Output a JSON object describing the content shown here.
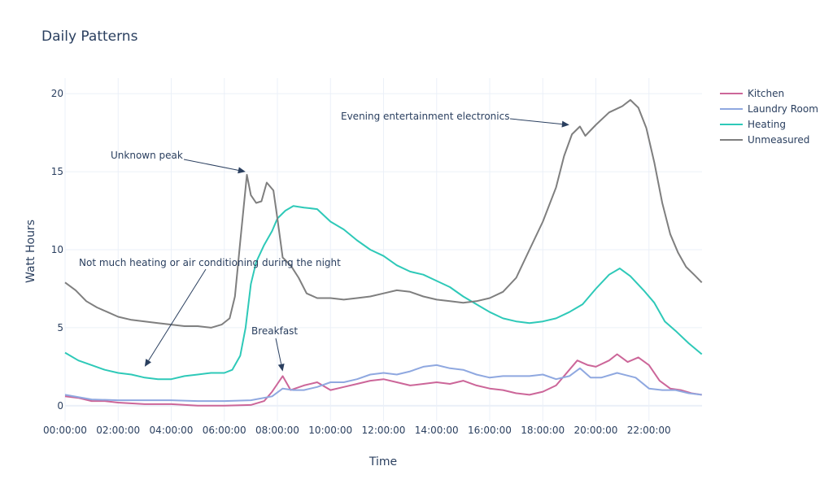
{
  "chart_data": {
    "type": "line",
    "title": "Daily Patterns",
    "xlabel": "Time",
    "ylabel": "Watt Hours",
    "xlim": [
      0,
      24
    ],
    "ylim": [
      -1,
      21
    ],
    "x_ticks": [
      "00:00:00",
      "02:00:00",
      "04:00:00",
      "06:00:00",
      "08:00:00",
      "10:00:00",
      "12:00:00",
      "14:00:00",
      "16:00:00",
      "18:00:00",
      "20:00:00",
      "22:00:00"
    ],
    "y_ticks": [
      0,
      5,
      10,
      15,
      20
    ],
    "grid": true,
    "legend_position": "top-right",
    "series": [
      {
        "name": "Kitchen",
        "color": "#cc6699",
        "points": [
          [
            0,
            0.6
          ],
          [
            0.5,
            0.5
          ],
          [
            1,
            0.3
          ],
          [
            1.5,
            0.3
          ],
          [
            2,
            0.2
          ],
          [
            3,
            0.1
          ],
          [
            4,
            0.1
          ],
          [
            5,
            0.0
          ],
          [
            6,
            0.0
          ],
          [
            7,
            0.05
          ],
          [
            7.5,
            0.3
          ],
          [
            7.8,
            0.9
          ],
          [
            8.0,
            1.4
          ],
          [
            8.2,
            1.9
          ],
          [
            8.5,
            1.0
          ],
          [
            9.0,
            1.3
          ],
          [
            9.5,
            1.5
          ],
          [
            10.0,
            1.0
          ],
          [
            10.5,
            1.2
          ],
          [
            11.0,
            1.4
          ],
          [
            11.5,
            1.6
          ],
          [
            12.0,
            1.7
          ],
          [
            12.5,
            1.5
          ],
          [
            13.0,
            1.3
          ],
          [
            13.5,
            1.4
          ],
          [
            14.0,
            1.5
          ],
          [
            14.5,
            1.4
          ],
          [
            15.0,
            1.6
          ],
          [
            15.5,
            1.3
          ],
          [
            16.0,
            1.1
          ],
          [
            16.5,
            1.0
          ],
          [
            17.0,
            0.8
          ],
          [
            17.5,
            0.7
          ],
          [
            18.0,
            0.9
          ],
          [
            18.5,
            1.3
          ],
          [
            19.0,
            2.3
          ],
          [
            19.3,
            2.9
          ],
          [
            19.7,
            2.6
          ],
          [
            20.0,
            2.5
          ],
          [
            20.5,
            2.9
          ],
          [
            20.8,
            3.3
          ],
          [
            21.2,
            2.8
          ],
          [
            21.6,
            3.1
          ],
          [
            22.0,
            2.6
          ],
          [
            22.4,
            1.6
          ],
          [
            22.8,
            1.1
          ],
          [
            23.2,
            1.0
          ],
          [
            23.6,
            0.8
          ],
          [
            23.99,
            0.7
          ]
        ]
      },
      {
        "name": "Laundry Room",
        "color": "#8fa8e0",
        "points": [
          [
            0,
            0.7
          ],
          [
            1,
            0.4
          ],
          [
            2,
            0.35
          ],
          [
            3,
            0.35
          ],
          [
            4,
            0.35
          ],
          [
            5,
            0.3
          ],
          [
            6,
            0.3
          ],
          [
            7,
            0.35
          ],
          [
            7.8,
            0.6
          ],
          [
            8.2,
            1.1
          ],
          [
            8.6,
            1.0
          ],
          [
            9.0,
            1.0
          ],
          [
            9.5,
            1.2
          ],
          [
            10.0,
            1.5
          ],
          [
            10.5,
            1.5
          ],
          [
            11.0,
            1.7
          ],
          [
            11.5,
            2.0
          ],
          [
            12.0,
            2.1
          ],
          [
            12.5,
            2.0
          ],
          [
            13.0,
            2.2
          ],
          [
            13.5,
            2.5
          ],
          [
            14.0,
            2.6
          ],
          [
            14.5,
            2.4
          ],
          [
            15.0,
            2.3
          ],
          [
            15.5,
            2.0
          ],
          [
            16.0,
            1.8
          ],
          [
            16.5,
            1.9
          ],
          [
            17.0,
            1.9
          ],
          [
            17.5,
            1.9
          ],
          [
            18.0,
            2.0
          ],
          [
            18.5,
            1.7
          ],
          [
            19.0,
            1.9
          ],
          [
            19.4,
            2.4
          ],
          [
            19.8,
            1.8
          ],
          [
            20.2,
            1.8
          ],
          [
            20.8,
            2.1
          ],
          [
            21.5,
            1.8
          ],
          [
            22.0,
            1.1
          ],
          [
            22.5,
            1.0
          ],
          [
            23.0,
            1.0
          ],
          [
            23.5,
            0.8
          ],
          [
            23.99,
            0.7
          ]
        ]
      },
      {
        "name": "Heating",
        "color": "#2ec9b8",
        "points": [
          [
            0,
            3.4
          ],
          [
            0.5,
            2.9
          ],
          [
            1,
            2.6
          ],
          [
            1.5,
            2.3
          ],
          [
            2,
            2.1
          ],
          [
            2.5,
            2.0
          ],
          [
            3,
            1.8
          ],
          [
            3.5,
            1.7
          ],
          [
            4,
            1.7
          ],
          [
            4.5,
            1.9
          ],
          [
            5,
            2.0
          ],
          [
            5.5,
            2.1
          ],
          [
            6,
            2.1
          ],
          [
            6.3,
            2.3
          ],
          [
            6.6,
            3.2
          ],
          [
            6.8,
            5.0
          ],
          [
            7.0,
            7.8
          ],
          [
            7.2,
            9.2
          ],
          [
            7.5,
            10.3
          ],
          [
            7.8,
            11.2
          ],
          [
            8.0,
            12.0
          ],
          [
            8.3,
            12.5
          ],
          [
            8.6,
            12.8
          ],
          [
            9.0,
            12.7
          ],
          [
            9.5,
            12.6
          ],
          [
            10.0,
            11.8
          ],
          [
            10.5,
            11.3
          ],
          [
            11.0,
            10.6
          ],
          [
            11.5,
            10.0
          ],
          [
            12.0,
            9.6
          ],
          [
            12.5,
            9.0
          ],
          [
            13.0,
            8.6
          ],
          [
            13.5,
            8.4
          ],
          [
            14.0,
            8.0
          ],
          [
            14.5,
            7.6
          ],
          [
            15.0,
            7.0
          ],
          [
            15.5,
            6.5
          ],
          [
            16.0,
            6.0
          ],
          [
            16.5,
            5.6
          ],
          [
            17.0,
            5.4
          ],
          [
            17.5,
            5.3
          ],
          [
            18.0,
            5.4
          ],
          [
            18.5,
            5.6
          ],
          [
            19.0,
            6.0
          ],
          [
            19.5,
            6.5
          ],
          [
            20.0,
            7.5
          ],
          [
            20.5,
            8.4
          ],
          [
            20.9,
            8.8
          ],
          [
            21.3,
            8.3
          ],
          [
            21.8,
            7.4
          ],
          [
            22.2,
            6.6
          ],
          [
            22.6,
            5.4
          ],
          [
            23.0,
            4.8
          ],
          [
            23.5,
            4.0
          ],
          [
            23.99,
            3.3
          ]
        ]
      },
      {
        "name": "Unmeasured",
        "color": "#7f7f7f",
        "points": [
          [
            0,
            7.9
          ],
          [
            0.4,
            7.4
          ],
          [
            0.8,
            6.7
          ],
          [
            1.2,
            6.3
          ],
          [
            1.6,
            6.0
          ],
          [
            2.0,
            5.7
          ],
          [
            2.5,
            5.5
          ],
          [
            3.0,
            5.4
          ],
          [
            3.5,
            5.3
          ],
          [
            4.0,
            5.2
          ],
          [
            4.5,
            5.1
          ],
          [
            5.0,
            5.1
          ],
          [
            5.5,
            5.0
          ],
          [
            5.9,
            5.2
          ],
          [
            6.2,
            5.6
          ],
          [
            6.4,
            7.0
          ],
          [
            6.6,
            10.5
          ],
          [
            6.85,
            14.8
          ],
          [
            7.0,
            13.5
          ],
          [
            7.2,
            13.0
          ],
          [
            7.4,
            13.1
          ],
          [
            7.6,
            14.3
          ],
          [
            7.85,
            13.8
          ],
          [
            8.0,
            12.0
          ],
          [
            8.2,
            9.5
          ],
          [
            8.5,
            9.0
          ],
          [
            8.8,
            8.2
          ],
          [
            9.1,
            7.2
          ],
          [
            9.5,
            6.9
          ],
          [
            10.0,
            6.9
          ],
          [
            10.5,
            6.8
          ],
          [
            11.0,
            6.9
          ],
          [
            11.5,
            7.0
          ],
          [
            12.0,
            7.2
          ],
          [
            12.5,
            7.4
          ],
          [
            13.0,
            7.3
          ],
          [
            13.5,
            7.0
          ],
          [
            14.0,
            6.8
          ],
          [
            14.5,
            6.7
          ],
          [
            15.0,
            6.6
          ],
          [
            15.5,
            6.7
          ],
          [
            16.0,
            6.9
          ],
          [
            16.5,
            7.3
          ],
          [
            17.0,
            8.2
          ],
          [
            17.5,
            10.0
          ],
          [
            18.0,
            11.8
          ],
          [
            18.5,
            14.0
          ],
          [
            18.8,
            16.0
          ],
          [
            19.1,
            17.4
          ],
          [
            19.4,
            17.9
          ],
          [
            19.6,
            17.3
          ],
          [
            20.0,
            18.0
          ],
          [
            20.5,
            18.8
          ],
          [
            21.0,
            19.2
          ],
          [
            21.3,
            19.6
          ],
          [
            21.6,
            19.1
          ],
          [
            21.9,
            17.8
          ],
          [
            22.2,
            15.6
          ],
          [
            22.5,
            13.0
          ],
          [
            22.8,
            11.0
          ],
          [
            23.1,
            9.8
          ],
          [
            23.4,
            8.9
          ],
          [
            23.7,
            8.4
          ],
          [
            23.99,
            7.9
          ]
        ]
      }
    ],
    "annotations": [
      {
        "text": "Evening entertainment electronics",
        "x": 19.0,
        "y": 18.0
      },
      {
        "text": "Unknown peak",
        "x": 6.8,
        "y": 15.0
      },
      {
        "text": "Not much heating or air conditioning during the night",
        "x": 3.0,
        "y": 2.5
      },
      {
        "text": "Breakfast",
        "x": 8.2,
        "y": 2.2
      }
    ]
  }
}
